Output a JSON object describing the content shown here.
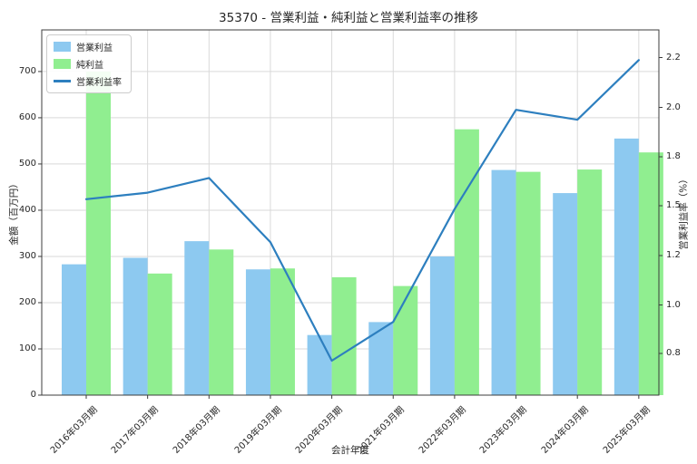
{
  "title": "35370 - 営業利益・純利益と営業利益率の推移",
  "chart_data": {
    "type": "combo",
    "categories": [
      "2016年03月期",
      "2017年03月期",
      "2018年03月期",
      "2019年03月期",
      "2020年03月期",
      "2021年03月期",
      "2022年03月期",
      "2023年03月期",
      "2024年03月期",
      "2025年03月期"
    ],
    "series": [
      {
        "name": "営業利益",
        "type": "bar",
        "axis": "left",
        "color": "#8dc9f0",
        "values": [
          283,
          297,
          333,
          272,
          130,
          158,
          300,
          487,
          437,
          555
        ]
      },
      {
        "name": "純利益",
        "type": "bar",
        "axis": "left",
        "color": "#90ee90",
        "values": [
          700,
          263,
          315,
          274,
          255,
          236,
          575,
          483,
          488,
          525
        ]
      },
      {
        "name": "営業利益率",
        "type": "line",
        "axis": "right",
        "color": "#2d7fbf",
        "values": [
          1.54,
          1.58,
          1.67,
          1.28,
          0.77,
          0.93,
          1.48,
          1.99,
          1.95,
          2.19
        ]
      }
    ],
    "xlabel": "会計年度",
    "ylabel_left": "金額（百万円）",
    "ylabel_right": "営業利益率（%）",
    "left_axis": {
      "ticks": [
        0,
        100,
        200,
        300,
        400,
        500,
        600,
        700
      ],
      "min": 0,
      "max": 790
    },
    "right_axis": {
      "ticks": [
        "0.8",
        "1.0",
        "1.2",
        "1.5",
        "1.8",
        "2.0",
        "2.2"
      ]
    },
    "legend_position": "upper left",
    "grid": true,
    "colors": {
      "grid": "#d9d9d9",
      "spine": "#3c3c3c",
      "text": "#262626",
      "background": "#ffffff"
    }
  }
}
